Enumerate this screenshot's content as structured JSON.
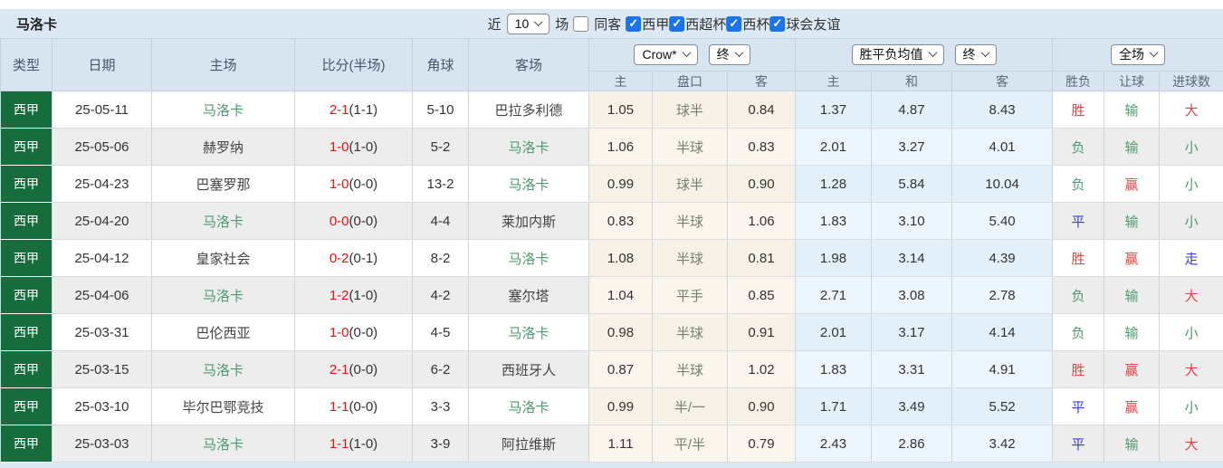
{
  "title": "马洛卡",
  "colors": {
    "panel-blue": "#dce8f3",
    "league-green": "#176c3c",
    "team-green": "#4c9b6e",
    "score-red": "#ee1111",
    "result-red": "#e04545",
    "result-green": "#4f9a6e",
    "result-blue": "#3c3cdc",
    "checkbox-blue": "#1b74e8"
  },
  "filter_bar": {
    "recent_label": "近",
    "recent_value": "10",
    "matches_label": "场",
    "same_away_label": "同客",
    "same_away_checked": false,
    "check_glyph": "✓",
    "competitions": [
      {
        "label": "西甲",
        "checked": true
      },
      {
        "label": "西超杯",
        "checked": true
      },
      {
        "label": "西杯",
        "checked": true
      },
      {
        "label": "球会友谊",
        "checked": true
      }
    ]
  },
  "table": {
    "static_headers": {
      "type": "类型",
      "date": "日期",
      "home": "主场",
      "score": "比分(半场)",
      "corners": "角球",
      "away": "客场"
    },
    "asian_group": {
      "provider": "Crow*",
      "time": "终",
      "sub": {
        "home": "主",
        "handicap": "盘口",
        "away": "客"
      }
    },
    "europe_group": {
      "provider": "胜平负均值",
      "time": "终",
      "sub": {
        "home": "主",
        "draw": "和",
        "away": "客"
      }
    },
    "result_group": {
      "scope": "全场",
      "sub": {
        "wdl": "胜负",
        "handicap": "让球",
        "goals": "进球数"
      }
    },
    "rows": [
      {
        "league": "西甲",
        "date": "25-05-11",
        "home": "马洛卡",
        "home_hl": true,
        "score_full": "2-1",
        "score_half": "(1-1)",
        "corners": "5-10",
        "away": "巴拉多利德",
        "away_hl": false,
        "asian_home": "1.05",
        "handicap": "球半",
        "asian_away": "0.84",
        "eu_home": "1.37",
        "eu_draw": "4.87",
        "eu_away": "8.43",
        "wdl": "胜",
        "wdl_color": "red",
        "let": "输",
        "let_color": "green",
        "goals": "大",
        "goals_color": "red"
      },
      {
        "league": "西甲",
        "date": "25-05-06",
        "home": "赫罗纳",
        "home_hl": false,
        "score_full": "1-0",
        "score_half": "(1-0)",
        "corners": "5-2",
        "away": "马洛卡",
        "away_hl": true,
        "asian_home": "1.06",
        "handicap": "半球",
        "asian_away": "0.83",
        "eu_home": "2.01",
        "eu_draw": "3.27",
        "eu_away": "4.01",
        "wdl": "负",
        "wdl_color": "green",
        "let": "输",
        "let_color": "green",
        "goals": "小",
        "goals_color": "green"
      },
      {
        "league": "西甲",
        "date": "25-04-23",
        "home": "巴塞罗那",
        "home_hl": false,
        "score_full": "1-0",
        "score_half": "(0-0)",
        "corners": "13-2",
        "away": "马洛卡",
        "away_hl": true,
        "asian_home": "0.99",
        "handicap": "球半",
        "asian_away": "0.90",
        "eu_home": "1.28",
        "eu_draw": "5.84",
        "eu_away": "10.04",
        "wdl": "负",
        "wdl_color": "green",
        "let": "赢",
        "let_color": "red",
        "goals": "小",
        "goals_color": "green"
      },
      {
        "league": "西甲",
        "date": "25-04-20",
        "home": "马洛卡",
        "home_hl": true,
        "score_full": "0-0",
        "score_half": "(0-0)",
        "corners": "4-4",
        "away": "莱加内斯",
        "away_hl": false,
        "asian_home": "0.83",
        "handicap": "半球",
        "asian_away": "1.06",
        "eu_home": "1.83",
        "eu_draw": "3.10",
        "eu_away": "5.40",
        "wdl": "平",
        "wdl_color": "blue",
        "let": "输",
        "let_color": "green",
        "goals": "小",
        "goals_color": "green"
      },
      {
        "league": "西甲",
        "date": "25-04-12",
        "home": "皇家社会",
        "home_hl": false,
        "score_full": "0-2",
        "score_half": "(0-1)",
        "corners": "8-2",
        "away": "马洛卡",
        "away_hl": true,
        "asian_home": "1.08",
        "handicap": "半球",
        "asian_away": "0.81",
        "eu_home": "1.98",
        "eu_draw": "3.14",
        "eu_away": "4.39",
        "wdl": "胜",
        "wdl_color": "red",
        "let": "赢",
        "let_color": "red",
        "goals": "走",
        "goals_color": "blue"
      },
      {
        "league": "西甲",
        "date": "25-04-06",
        "home": "马洛卡",
        "home_hl": true,
        "score_full": "1-2",
        "score_half": "(1-0)",
        "corners": "4-2",
        "away": "塞尔塔",
        "away_hl": false,
        "asian_home": "1.04",
        "handicap": "平手",
        "asian_away": "0.85",
        "eu_home": "2.71",
        "eu_draw": "3.08",
        "eu_away": "2.78",
        "wdl": "负",
        "wdl_color": "green",
        "let": "输",
        "let_color": "green",
        "goals": "大",
        "goals_color": "red"
      },
      {
        "league": "西甲",
        "date": "25-03-31",
        "home": "巴伦西亚",
        "home_hl": false,
        "score_full": "1-0",
        "score_half": "(0-0)",
        "corners": "4-5",
        "away": "马洛卡",
        "away_hl": true,
        "asian_home": "0.98",
        "handicap": "半球",
        "asian_away": "0.91",
        "eu_home": "2.01",
        "eu_draw": "3.17",
        "eu_away": "4.14",
        "wdl": "负",
        "wdl_color": "green",
        "let": "输",
        "let_color": "green",
        "goals": "小",
        "goals_color": "green"
      },
      {
        "league": "西甲",
        "date": "25-03-15",
        "home": "马洛卡",
        "home_hl": true,
        "score_full": "2-1",
        "score_half": "(0-0)",
        "corners": "6-2",
        "away": "西班牙人",
        "away_hl": false,
        "asian_home": "0.87",
        "handicap": "半球",
        "asian_away": "1.02",
        "eu_home": "1.83",
        "eu_draw": "3.31",
        "eu_away": "4.91",
        "wdl": "胜",
        "wdl_color": "red",
        "let": "赢",
        "let_color": "red",
        "goals": "大",
        "goals_color": "red"
      },
      {
        "league": "西甲",
        "date": "25-03-10",
        "home": "毕尔巴鄂竞技",
        "home_hl": false,
        "score_full": "1-1",
        "score_half": "(0-0)",
        "corners": "3-3",
        "away": "马洛卡",
        "away_hl": true,
        "asian_home": "0.99",
        "handicap": "半/一",
        "asian_away": "0.90",
        "eu_home": "1.71",
        "eu_draw": "3.49",
        "eu_away": "5.52",
        "wdl": "平",
        "wdl_color": "blue",
        "let": "赢",
        "let_color": "red",
        "goals": "小",
        "goals_color": "green"
      },
      {
        "league": "西甲",
        "date": "25-03-03",
        "home": "马洛卡",
        "home_hl": true,
        "score_full": "1-1",
        "score_half": "(1-0)",
        "corners": "3-9",
        "away": "阿拉维斯",
        "away_hl": false,
        "asian_home": "1.11",
        "handicap": "平/半",
        "asian_away": "0.79",
        "eu_home": "2.43",
        "eu_draw": "2.86",
        "eu_away": "3.42",
        "wdl": "平",
        "wdl_color": "blue",
        "let": "输",
        "let_color": "green",
        "goals": "大",
        "goals_color": "red"
      }
    ]
  }
}
